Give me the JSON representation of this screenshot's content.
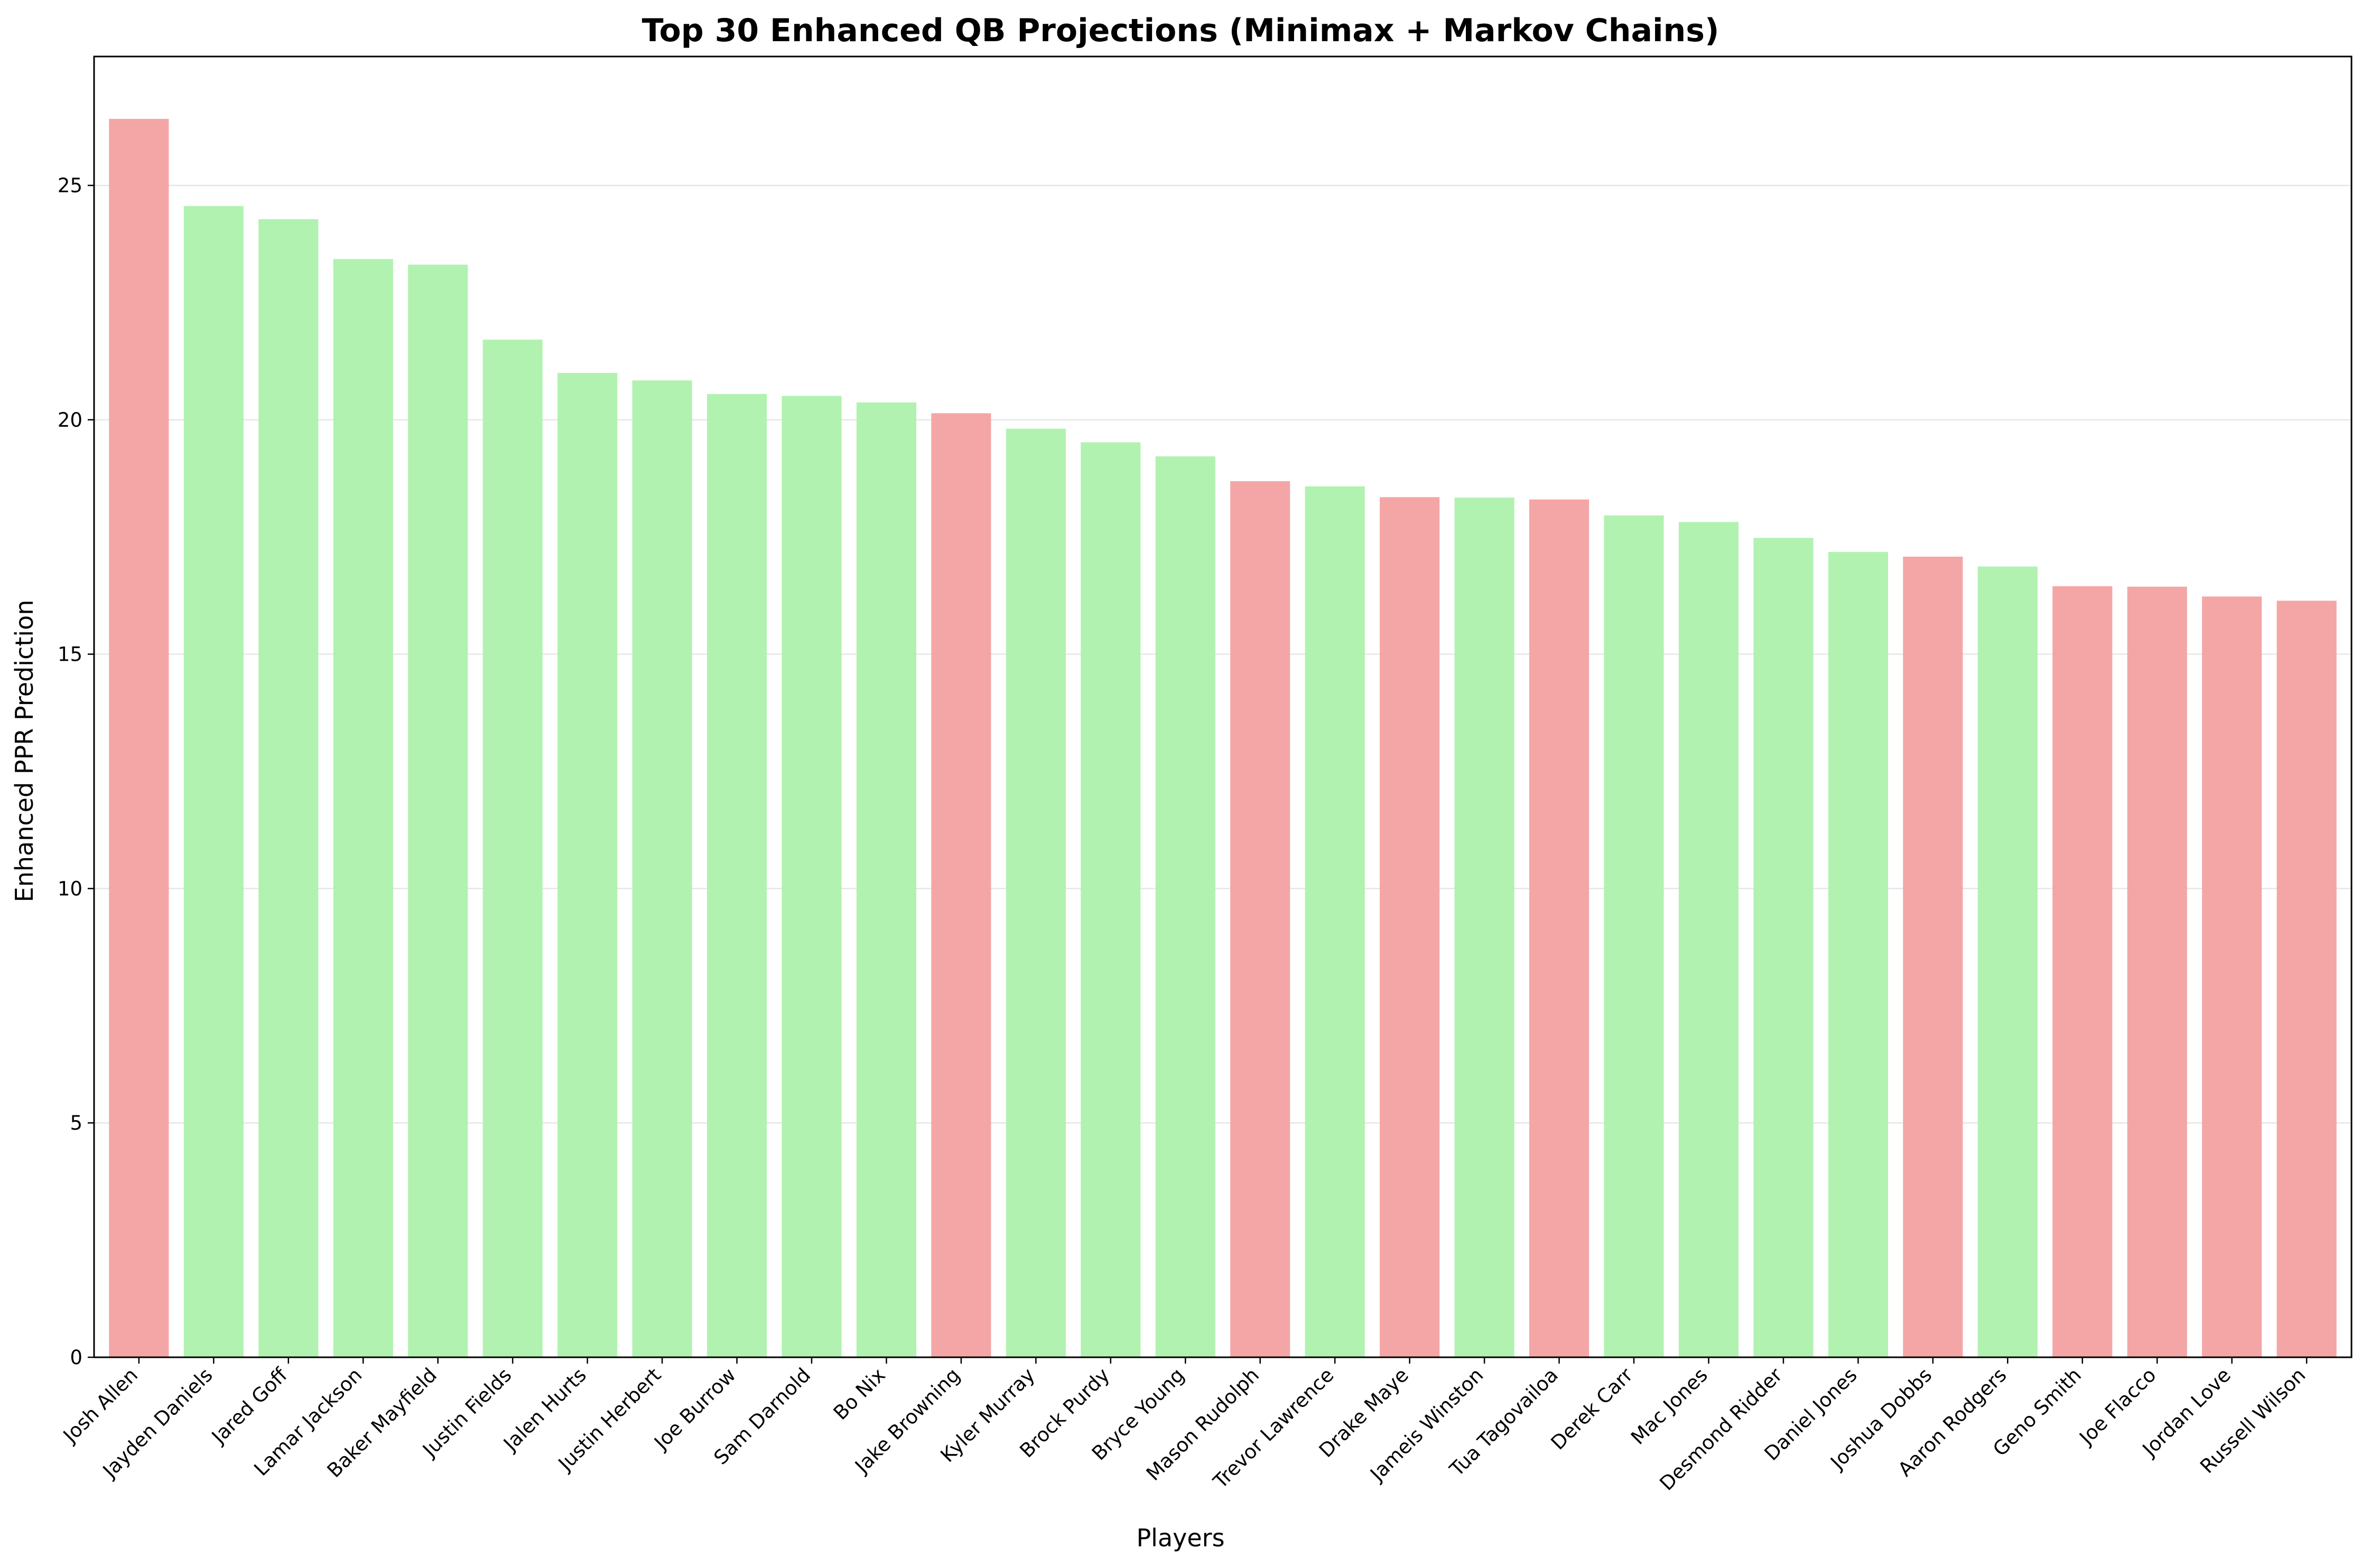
{
  "chart_data": {
    "type": "bar",
    "title": "Top 30 Enhanced QB Projections (Minimax + Markov Chains)",
    "xlabel": "Players",
    "ylabel": "Enhanced PPR Prediction",
    "ylim": [
      0,
      27.75
    ],
    "yticks": [
      0,
      5,
      10,
      15,
      20,
      25
    ],
    "grid": "horizontal",
    "colors": {
      "red": "#f4a6a6",
      "green": "#b1f2b1"
    },
    "categories": [
      "Josh Allen",
      "Jayden Daniels",
      "Jared Goff",
      "Lamar Jackson",
      "Baker Mayfield",
      "Justin Fields",
      "Jalen Hurts",
      "Justin Herbert",
      "Joe Burrow",
      "Sam Darnold",
      "Bo Nix",
      "Jake Browning",
      "Kyler Murray",
      "Brock Purdy",
      "Bryce Young",
      "Mason Rudolph",
      "Trevor Lawrence",
      "Drake Maye",
      "Jameis Winston",
      "Tua Tagovailoa",
      "Derek Carr",
      "Mac Jones",
      "Desmond Ridder",
      "Daniel Jones",
      "Joshua Dobbs",
      "Aaron Rodgers",
      "Geno Smith",
      "Joe Flacco",
      "Jordan Love",
      "Russell Wilson"
    ],
    "values": [
      26.42,
      24.56,
      24.28,
      23.43,
      23.31,
      21.71,
      21.0,
      20.84,
      20.55,
      20.51,
      20.37,
      20.14,
      19.81,
      19.52,
      19.22,
      18.69,
      18.58,
      18.35,
      18.34,
      18.3,
      17.96,
      17.82,
      17.48,
      17.18,
      17.08,
      16.87,
      16.45,
      16.44,
      16.23,
      16.14
    ],
    "bar_colors": [
      "red",
      "green",
      "green",
      "green",
      "green",
      "green",
      "green",
      "green",
      "green",
      "green",
      "green",
      "red",
      "green",
      "green",
      "green",
      "red",
      "green",
      "red",
      "green",
      "red",
      "green",
      "green",
      "green",
      "green",
      "red",
      "green",
      "red",
      "red",
      "red",
      "red"
    ]
  }
}
